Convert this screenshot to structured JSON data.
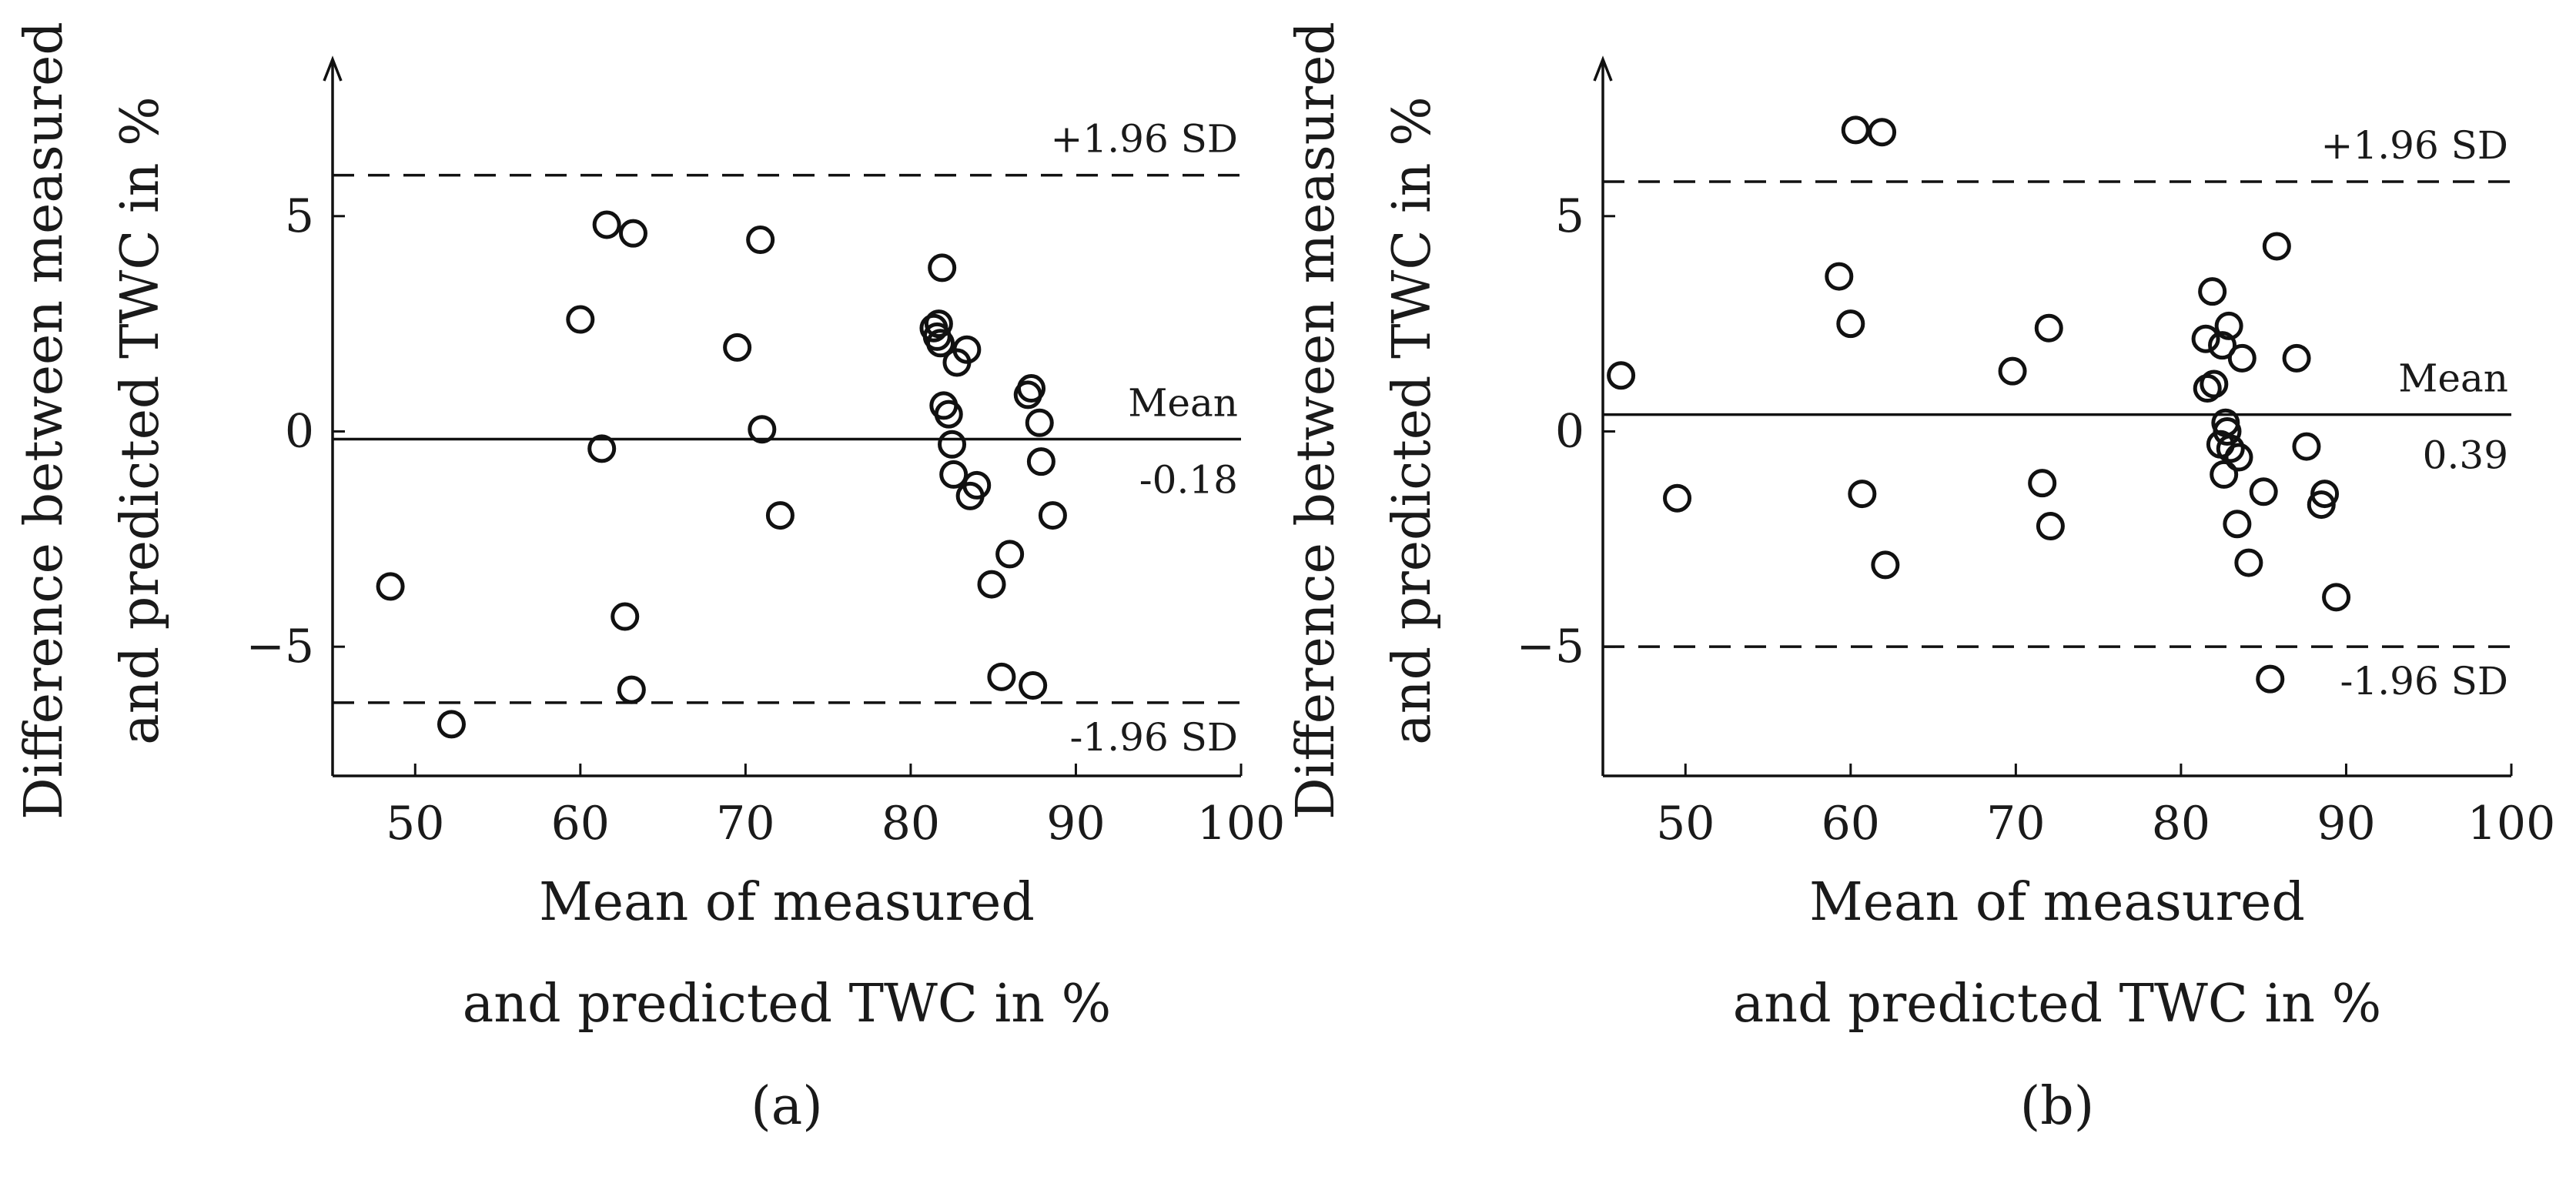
{
  "chart_data": [
    {
      "type": "scatter",
      "panel_label": "(a)",
      "xlabel_lines": [
        "Mean of measured",
        "and predicted TWC in %"
      ],
      "ylabel_lines": [
        "Difference between measured",
        "and predicted TWC in %"
      ],
      "xlim": [
        45,
        100
      ],
      "ylim": [
        -8,
        8.5
      ],
      "xticks": [
        50,
        60,
        70,
        80,
        90,
        100
      ],
      "yticks": [
        -5,
        0,
        5
      ],
      "ytick_labels": [
        "−5",
        "0",
        "5"
      ],
      "mean": -0.18,
      "mean_label": "Mean",
      "mean_value_label": "-0.18",
      "upper_sd": 5.95,
      "upper_sd_label": "+1.96 SD",
      "lower_sd": -6.3,
      "lower_sd_label": "-1.96 SD",
      "points": [
        [
          48.5,
          -3.6
        ],
        [
          52.2,
          -6.8
        ],
        [
          60.0,
          2.6
        ],
        [
          61.3,
          -0.4
        ],
        [
          61.6,
          4.8
        ],
        [
          62.7,
          -4.3
        ],
        [
          63.2,
          4.6
        ],
        [
          63.1,
          -6.0
        ],
        [
          69.5,
          1.95
        ],
        [
          70.9,
          4.45
        ],
        [
          71.0,
          0.05
        ],
        [
          72.1,
          -1.95
        ],
        [
          81.4,
          2.4
        ],
        [
          81.6,
          2.2
        ],
        [
          81.7,
          2.5
        ],
        [
          81.8,
          2.05
        ],
        [
          81.9,
          3.8
        ],
        [
          82.0,
          0.6
        ],
        [
          82.3,
          0.4
        ],
        [
          82.5,
          -0.3
        ],
        [
          82.6,
          -1.0
        ],
        [
          82.8,
          1.6
        ],
        [
          83.4,
          1.9
        ],
        [
          83.6,
          -1.5
        ],
        [
          84.0,
          -1.25
        ],
        [
          84.9,
          -3.55
        ],
        [
          85.5,
          -5.7
        ],
        [
          86.0,
          -2.85
        ],
        [
          87.1,
          0.85
        ],
        [
          87.3,
          1.0
        ],
        [
          87.4,
          -5.9
        ],
        [
          87.8,
          0.2
        ],
        [
          87.9,
          -0.7
        ],
        [
          88.6,
          -1.95
        ]
      ]
    },
    {
      "type": "scatter",
      "panel_label": "(b)",
      "xlabel_lines": [
        "Mean of measured",
        "and predicted TWC in %"
      ],
      "ylabel_lines": [
        "Difference between measured",
        "and predicted TWC in %"
      ],
      "xlim": [
        45,
        100
      ],
      "ylim": [
        -8,
        8.5
      ],
      "xticks": [
        50,
        60,
        70,
        80,
        90,
        100
      ],
      "yticks": [
        -5,
        0,
        5
      ],
      "ytick_labels": [
        "−5",
        "0",
        "5"
      ],
      "mean": 0.39,
      "mean_label": "Mean",
      "mean_value_label": "0.39",
      "upper_sd": 5.8,
      "upper_sd_label": "+1.96 SD",
      "lower_sd": -5.0,
      "lower_sd_label": "-1.96 SD",
      "points": [
        [
          46.1,
          1.3
        ],
        [
          49.5,
          -1.55
        ],
        [
          59.3,
          3.6
        ],
        [
          60.0,
          2.5
        ],
        [
          60.3,
          7.0
        ],
        [
          60.7,
          -1.45
        ],
        [
          61.9,
          6.95
        ],
        [
          62.1,
          -3.1
        ],
        [
          69.8,
          1.4
        ],
        [
          71.6,
          -1.2
        ],
        [
          72.0,
          2.4
        ],
        [
          72.1,
          -2.2
        ],
        [
          81.5,
          2.15
        ],
        [
          81.6,
          1.0
        ],
        [
          81.9,
          3.25
        ],
        [
          82.0,
          1.1
        ],
        [
          82.4,
          -0.3
        ],
        [
          82.5,
          2.0
        ],
        [
          82.6,
          -1.0
        ],
        [
          82.7,
          0.2
        ],
        [
          82.8,
          0.0
        ],
        [
          82.9,
          2.45
        ],
        [
          83.0,
          -0.4
        ],
        [
          83.4,
          -2.15
        ],
        [
          83.5,
          -0.6
        ],
        [
          83.7,
          1.7
        ],
        [
          84.1,
          -3.05
        ],
        [
          85.0,
          -1.4
        ],
        [
          85.4,
          -5.75
        ],
        [
          85.8,
          4.3
        ],
        [
          87.0,
          1.7
        ],
        [
          87.6,
          -0.35
        ],
        [
          88.5,
          -1.7
        ],
        [
          88.7,
          -1.45
        ],
        [
          89.4,
          -3.85
        ]
      ]
    }
  ]
}
